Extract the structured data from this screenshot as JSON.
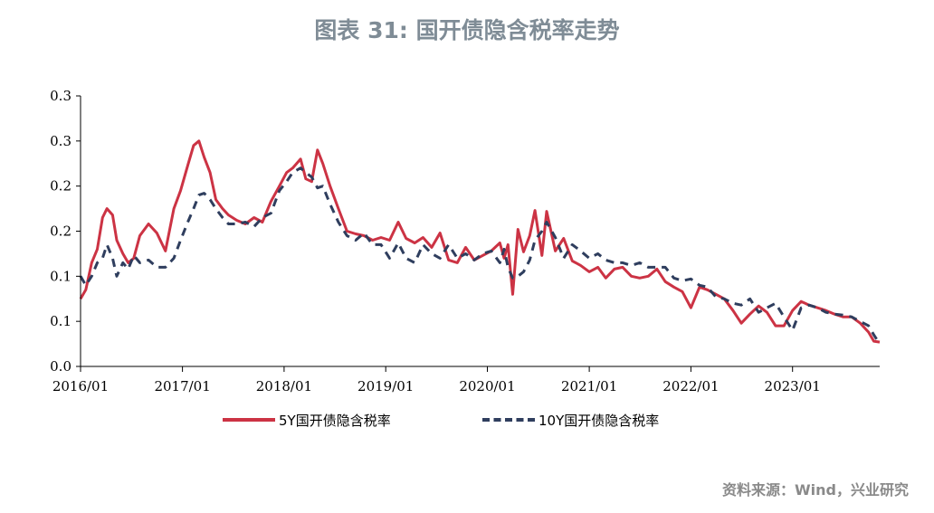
{
  "title": "图表 31: 国开债隐含税率走势",
  "source": "资料来源：Wind，兴业研究",
  "colors": {
    "series_5y": "#cc3344",
    "series_10y": "#2f3e5e",
    "axis": "#000000"
  },
  "chart_data": {
    "type": "line",
    "title": "图表 31: 国开债隐含税率走势",
    "xlabel": "",
    "ylabel": "",
    "x_range": [
      "2016-01-01",
      "2023-11-10"
    ],
    "ylim": [
      0,
      0.3
    ],
    "y_tick_values": [
      0.0,
      0.05,
      0.1,
      0.15,
      0.2,
      0.25,
      0.3
    ],
    "y_tick_labels": [
      "0.0",
      "0.1",
      "0.1",
      "0.2",
      "0.2",
      "0.3",
      "0.3"
    ],
    "x_tick_labels": [
      "2016/01",
      "2017/01",
      "2018/01",
      "2019/01",
      "2020/01",
      "2021/01",
      "2022/01",
      "2023/01"
    ],
    "grid": false,
    "legend_position": "bottom",
    "series": [
      {
        "name": "5Y国开债隐含税率",
        "style": "solid",
        "x": [
          "2016-01-01",
          "2016-01-20",
          "2016-02-10",
          "2016-03-01",
          "2016-03-20",
          "2016-04-05",
          "2016-04-25",
          "2016-05-10",
          "2016-06-01",
          "2016-06-20",
          "2016-07-10",
          "2016-08-01",
          "2016-09-01",
          "2016-10-01",
          "2016-11-01",
          "2016-12-01",
          "2016-12-25",
          "2017-01-20",
          "2017-02-10",
          "2017-03-01",
          "2017-03-20",
          "2017-04-10",
          "2017-05-01",
          "2017-05-25",
          "2017-06-15",
          "2017-07-15",
          "2017-08-15",
          "2017-09-15",
          "2017-10-15",
          "2017-11-15",
          "2017-12-15",
          "2018-01-10",
          "2018-02-01",
          "2018-03-01",
          "2018-03-20",
          "2018-04-10",
          "2018-05-01",
          "2018-05-20",
          "2018-06-15",
          "2018-07-15",
          "2018-08-15",
          "2018-09-15",
          "2018-10-15",
          "2018-11-15",
          "2018-12-15",
          "2019-01-15",
          "2019-02-15",
          "2019-03-15",
          "2019-04-15",
          "2019-05-15",
          "2019-06-15",
          "2019-07-15",
          "2019-08-15",
          "2019-09-15",
          "2019-10-15",
          "2019-11-15",
          "2019-12-15",
          "2020-01-15",
          "2020-02-15",
          "2020-03-01",
          "2020-03-15",
          "2020-04-01",
          "2020-04-20",
          "2020-05-10",
          "2020-06-01",
          "2020-06-20",
          "2020-07-15",
          "2020-08-01",
          "2020-09-01",
          "2020-10-01",
          "2020-11-01",
          "2020-12-01",
          "2021-01-01",
          "2021-02-01",
          "2021-03-01",
          "2021-04-01",
          "2021-05-01",
          "2021-06-01",
          "2021-07-01",
          "2021-08-01",
          "2021-09-01",
          "2021-10-01",
          "2021-11-01",
          "2021-12-01",
          "2022-01-01",
          "2022-02-01",
          "2022-03-01",
          "2022-04-01",
          "2022-05-01",
          "2022-06-01",
          "2022-07-01",
          "2022-08-01",
          "2022-09-01",
          "2022-10-01",
          "2022-11-01",
          "2022-12-01",
          "2023-01-01",
          "2023-02-01",
          "2023-03-01",
          "2023-04-01",
          "2023-05-01",
          "2023-06-01",
          "2023-07-01",
          "2023-08-01",
          "2023-09-01",
          "2023-10-01",
          "2023-10-20",
          "2023-11-10"
        ],
        "values": [
          0.075,
          0.085,
          0.115,
          0.13,
          0.165,
          0.175,
          0.168,
          0.14,
          0.125,
          0.115,
          0.12,
          0.145,
          0.158,
          0.148,
          0.128,
          0.175,
          0.195,
          0.223,
          0.245,
          0.25,
          0.232,
          0.215,
          0.185,
          0.175,
          0.168,
          0.162,
          0.158,
          0.165,
          0.16,
          0.183,
          0.2,
          0.215,
          0.22,
          0.23,
          0.208,
          0.205,
          0.24,
          0.225,
          0.2,
          0.175,
          0.15,
          0.147,
          0.145,
          0.14,
          0.143,
          0.14,
          0.16,
          0.142,
          0.137,
          0.143,
          0.132,
          0.148,
          0.118,
          0.115,
          0.132,
          0.118,
          0.123,
          0.128,
          0.137,
          0.12,
          0.135,
          0.08,
          0.152,
          0.127,
          0.145,
          0.173,
          0.123,
          0.172,
          0.128,
          0.142,
          0.117,
          0.112,
          0.105,
          0.11,
          0.098,
          0.108,
          0.11,
          0.1,
          0.098,
          0.1,
          0.108,
          0.094,
          0.088,
          0.083,
          0.065,
          0.088,
          0.085,
          0.08,
          0.075,
          0.062,
          0.048,
          0.058,
          0.067,
          0.06,
          0.045,
          0.045,
          0.062,
          0.072,
          0.068,
          0.065,
          0.062,
          0.058,
          0.055,
          0.055,
          0.048,
          0.038,
          0.028,
          0.027
        ]
      },
      {
        "name": "10Y国开债隐含税率",
        "style": "dashed",
        "x": [
          "2016-01-01",
          "2016-01-20",
          "2016-02-10",
          "2016-03-01",
          "2016-03-20",
          "2016-04-05",
          "2016-04-25",
          "2016-05-10",
          "2016-06-01",
          "2016-06-20",
          "2016-07-10",
          "2016-08-01",
          "2016-09-01",
          "2016-10-01",
          "2016-11-01",
          "2016-12-01",
          "2016-12-25",
          "2017-01-20",
          "2017-02-10",
          "2017-03-01",
          "2017-03-20",
          "2017-04-10",
          "2017-05-01",
          "2017-05-25",
          "2017-06-15",
          "2017-07-15",
          "2017-08-15",
          "2017-09-15",
          "2017-10-15",
          "2017-11-15",
          "2017-12-15",
          "2018-01-10",
          "2018-02-01",
          "2018-03-01",
          "2018-03-20",
          "2018-04-10",
          "2018-05-01",
          "2018-05-20",
          "2018-06-15",
          "2018-07-15",
          "2018-08-15",
          "2018-09-15",
          "2018-10-15",
          "2018-11-15",
          "2018-12-15",
          "2019-01-15",
          "2019-02-15",
          "2019-03-15",
          "2019-04-15",
          "2019-05-15",
          "2019-06-15",
          "2019-07-15",
          "2019-08-15",
          "2019-09-15",
          "2019-10-15",
          "2019-11-15",
          "2019-12-15",
          "2020-01-15",
          "2020-02-15",
          "2020-03-01",
          "2020-03-15",
          "2020-04-01",
          "2020-04-20",
          "2020-05-10",
          "2020-06-01",
          "2020-06-20",
          "2020-07-15",
          "2020-08-01",
          "2020-09-01",
          "2020-10-01",
          "2020-11-01",
          "2020-12-01",
          "2021-01-01",
          "2021-02-01",
          "2021-03-01",
          "2021-04-01",
          "2021-05-01",
          "2021-06-01",
          "2021-07-01",
          "2021-08-01",
          "2021-09-01",
          "2021-10-01",
          "2021-11-01",
          "2021-12-01",
          "2022-01-01",
          "2022-02-01",
          "2022-03-01",
          "2022-04-01",
          "2022-05-01",
          "2022-06-01",
          "2022-07-01",
          "2022-08-01",
          "2022-09-01",
          "2022-10-01",
          "2022-11-01",
          "2022-12-01",
          "2023-01-01",
          "2023-02-01",
          "2023-03-01",
          "2023-04-01",
          "2023-05-01",
          "2023-06-01",
          "2023-07-01",
          "2023-08-01",
          "2023-09-01",
          "2023-10-01",
          "2023-10-20",
          "2023-11-10"
        ],
        "values": [
          0.1,
          0.09,
          0.1,
          0.115,
          0.12,
          0.135,
          0.12,
          0.1,
          0.115,
          0.108,
          0.123,
          0.115,
          0.118,
          0.11,
          0.11,
          0.12,
          0.14,
          0.16,
          0.175,
          0.19,
          0.192,
          0.185,
          0.175,
          0.165,
          0.158,
          0.158,
          0.16,
          0.155,
          0.165,
          0.17,
          0.195,
          0.205,
          0.215,
          0.22,
          0.215,
          0.21,
          0.198,
          0.2,
          0.18,
          0.16,
          0.145,
          0.14,
          0.148,
          0.135,
          0.135,
          0.12,
          0.137,
          0.12,
          0.115,
          0.135,
          0.125,
          0.12,
          0.135,
          0.12,
          0.125,
          0.118,
          0.125,
          0.128,
          0.115,
          0.13,
          0.11,
          0.098,
          0.1,
          0.105,
          0.118,
          0.14,
          0.15,
          0.16,
          0.143,
          0.12,
          0.135,
          0.128,
          0.12,
          0.125,
          0.118,
          0.115,
          0.115,
          0.112,
          0.115,
          0.11,
          0.11,
          0.11,
          0.098,
          0.095,
          0.097,
          0.09,
          0.088,
          0.077,
          0.075,
          0.07,
          0.068,
          0.075,
          0.06,
          0.065,
          0.07,
          0.055,
          0.04,
          0.065,
          0.068,
          0.065,
          0.06,
          0.058,
          0.057,
          0.055,
          0.05,
          0.045,
          0.035,
          0.025
        ]
      }
    ]
  }
}
